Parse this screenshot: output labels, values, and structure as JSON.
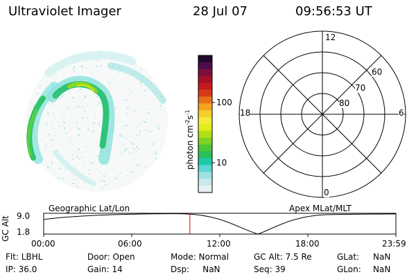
{
  "header": {
    "title": "Ultraviolet Imager",
    "date": "28 Jul 07",
    "time": "09:56:53 UT"
  },
  "colorbar": {
    "label": "photon cm",
    "label_sup1": "-2",
    "label_mid": "s",
    "label_sup2": "-1",
    "ticks": [
      "100",
      "10"
    ],
    "colors": [
      "#e6f0f0",
      "#c9e9ea",
      "#9fe0e2",
      "#5ed6d4",
      "#1dc9a7",
      "#2bbf5a",
      "#4dc63b",
      "#7ed221",
      "#b3de17",
      "#e3ec1c",
      "#f6ea3a",
      "#f5cd2c",
      "#f5a21f",
      "#e86e17",
      "#d63a1a",
      "#c41a1e",
      "#a70f28",
      "#7e0d3d",
      "#4e0c4f",
      "#20082e"
    ]
  },
  "polar": {
    "labels_top": "12",
    "labels_left": "18",
    "labels_right": "6",
    "labels_bottom": "0",
    "ring_labels": [
      "60",
      "70",
      "80"
    ]
  },
  "timeline": {
    "ylabel": "GC Alt",
    "yticks": [
      "9.0",
      "1.8"
    ],
    "left_label": "Geographic Lat/Lon",
    "right_label": "Apex  MLat/MLT",
    "xticks": [
      "00:00",
      "06:00",
      "12:00",
      "18:00",
      "23:59"
    ],
    "current_time_fraction": 0.415
  },
  "info": {
    "col1": [
      "Flt: LBHL",
      "IP: 36.0"
    ],
    "col2": [
      "Door: Open",
      "Gain: 14"
    ],
    "col3": [
      "Mode: Normal",
      "Dsp:     NaN"
    ],
    "col4": [
      "GC Alt: 7.5 Re",
      "Seq: 39"
    ],
    "col5": [
      "GLat:",
      "GLon:"
    ],
    "col5_vals": [
      "NaN",
      "NaN"
    ]
  },
  "colors": {
    "accent_red": "#e00000"
  }
}
